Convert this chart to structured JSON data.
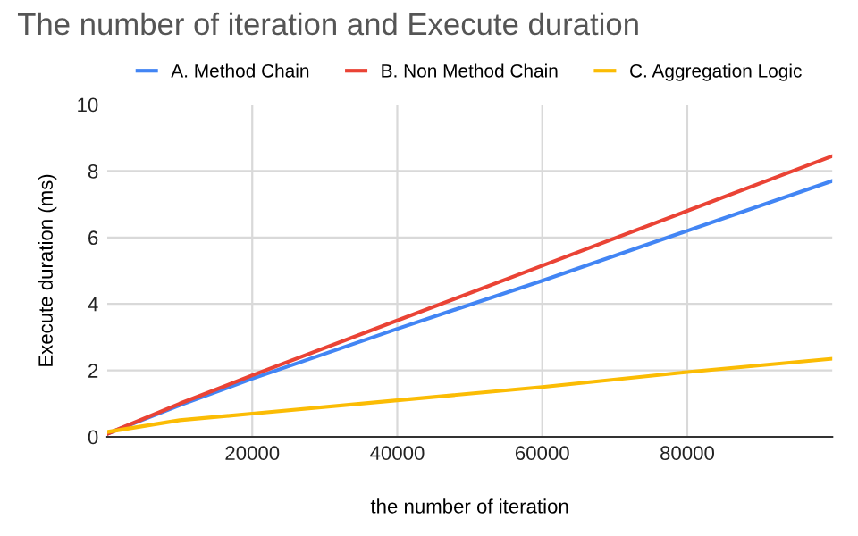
{
  "chart_data": {
    "type": "line",
    "title": "The number of iteration and Execute duration",
    "xlabel": "the number of iteration",
    "ylabel": "Execute duration (ms)",
    "x": [
      100,
      10000,
      20000,
      40000,
      60000,
      80000,
      100000
    ],
    "series": [
      {
        "name": "A. Method Chain",
        "color": "#4285f4",
        "values": [
          0.1,
          0.95,
          1.75,
          3.25,
          4.7,
          6.2,
          7.7
        ]
      },
      {
        "name": "B. Non Method Chain",
        "color": "#ea4335",
        "values": [
          0.1,
          1.0,
          1.85,
          3.5,
          5.15,
          6.8,
          8.45
        ]
      },
      {
        "name": "C. Aggregation Logic",
        "color": "#fbbc04",
        "values": [
          0.15,
          0.5,
          0.7,
          1.1,
          1.5,
          1.95,
          2.35
        ]
      }
    ],
    "xlim": [
      0,
      100000
    ],
    "xticks": [
      20000,
      40000,
      60000,
      80000
    ],
    "ylim": [
      0,
      10
    ],
    "yticks": [
      0,
      2,
      4,
      6,
      8,
      10
    ],
    "grid": true,
    "legend": "top",
    "marker": "none",
    "line_style": "solid"
  }
}
